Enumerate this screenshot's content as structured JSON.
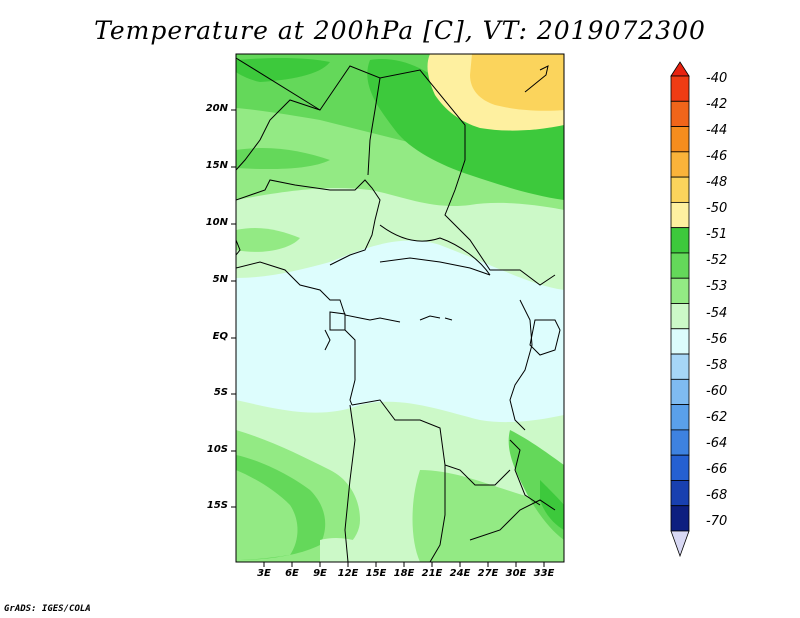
{
  "title": "Temperature at 200hPa [C], VT: 2019072300",
  "credit": "GrADS: IGES/COLA",
  "lat_labels": [
    "20N",
    "15N",
    "10N",
    "5N",
    "EQ",
    "5S",
    "10S",
    "15S"
  ],
  "lon_labels": [
    "3E",
    "6E",
    "9E",
    "12E",
    "15E",
    "18E",
    "21E",
    "24E",
    "27E",
    "30E",
    "33E"
  ],
  "colorbar": {
    "labels": [
      "-40",
      "-42",
      "-44",
      "-46",
      "-48",
      "-50",
      "-51",
      "-52",
      "-53",
      "-54",
      "-56",
      "-58",
      "-60",
      "-62",
      "-64",
      "-66",
      "-68",
      "-70"
    ],
    "colors": {
      "top_arrow": "#e8220f",
      "bins": [
        "#ef3c14",
        "#f0651a",
        "#f58d1e",
        "#fab33a",
        "#fbd45c",
        "#fef0a0",
        "#3dc93c",
        "#64d85a",
        "#93ea84",
        "#ccf9c8",
        "#dcfcfc",
        "#a6d6f7",
        "#7fbbf1",
        "#5aa0ea",
        "#3e82e0",
        "#2560d2",
        "#1840b0",
        "#0d1f80"
      ],
      "bottom_arrow": "#d8d8f4"
    }
  },
  "colors": {
    "frame": "#000000",
    "fill_54": "#ddfdfd",
    "fill_53": "#ccf9c8",
    "fill_52": "#93ea84",
    "fill_51": "#64d85a",
    "fill_51b": "#3dc93c",
    "fill_50": "#fef0a0",
    "fill_48": "#fbd45c"
  }
}
